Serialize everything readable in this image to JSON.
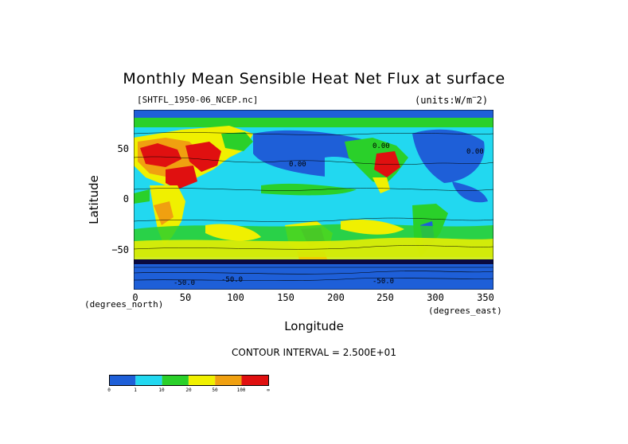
{
  "title": "Monthly Mean Sensible Heat Net Flux at surface",
  "file_label": "[SHTFL_1950-06_NCEP.nc]",
  "units_label": "(units:W/m^2)",
  "xlabel": "Longitude",
  "ylabel": "Latitude",
  "x_unit_label": "(degrees_east)",
  "y_unit_label": "(degrees_north)",
  "contour_interval": "CONTOUR INTERVAL = 2.500E+01",
  "x_ticks": [
    "0",
    "50",
    "100",
    "150",
    "200",
    "250",
    "300",
    "350"
  ],
  "y_ticks": [
    "50",
    "0",
    "−50"
  ],
  "contour_labels": [
    "0.00",
    "0.00",
    "0.00",
    "-50.0",
    "-50.0",
    "-50.0"
  ],
  "colorbar": {
    "colors": [
      "#1e5fd8",
      "#22d8f0",
      "#2ad02a",
      "#f0f000",
      "#f0a010",
      "#e01010"
    ],
    "labels": [
      "0",
      "1",
      "10",
      "20",
      "50",
      "100",
      "∞"
    ]
  },
  "colors": {
    "ocean_cold": "#1e5fd8",
    "ocean_cool": "#22d8f0",
    "mid": "#2ad02a",
    "warm": "#f0f000",
    "hot": "#f0a010",
    "very_hot": "#e01010",
    "antarctic": "#0a0a40"
  }
}
